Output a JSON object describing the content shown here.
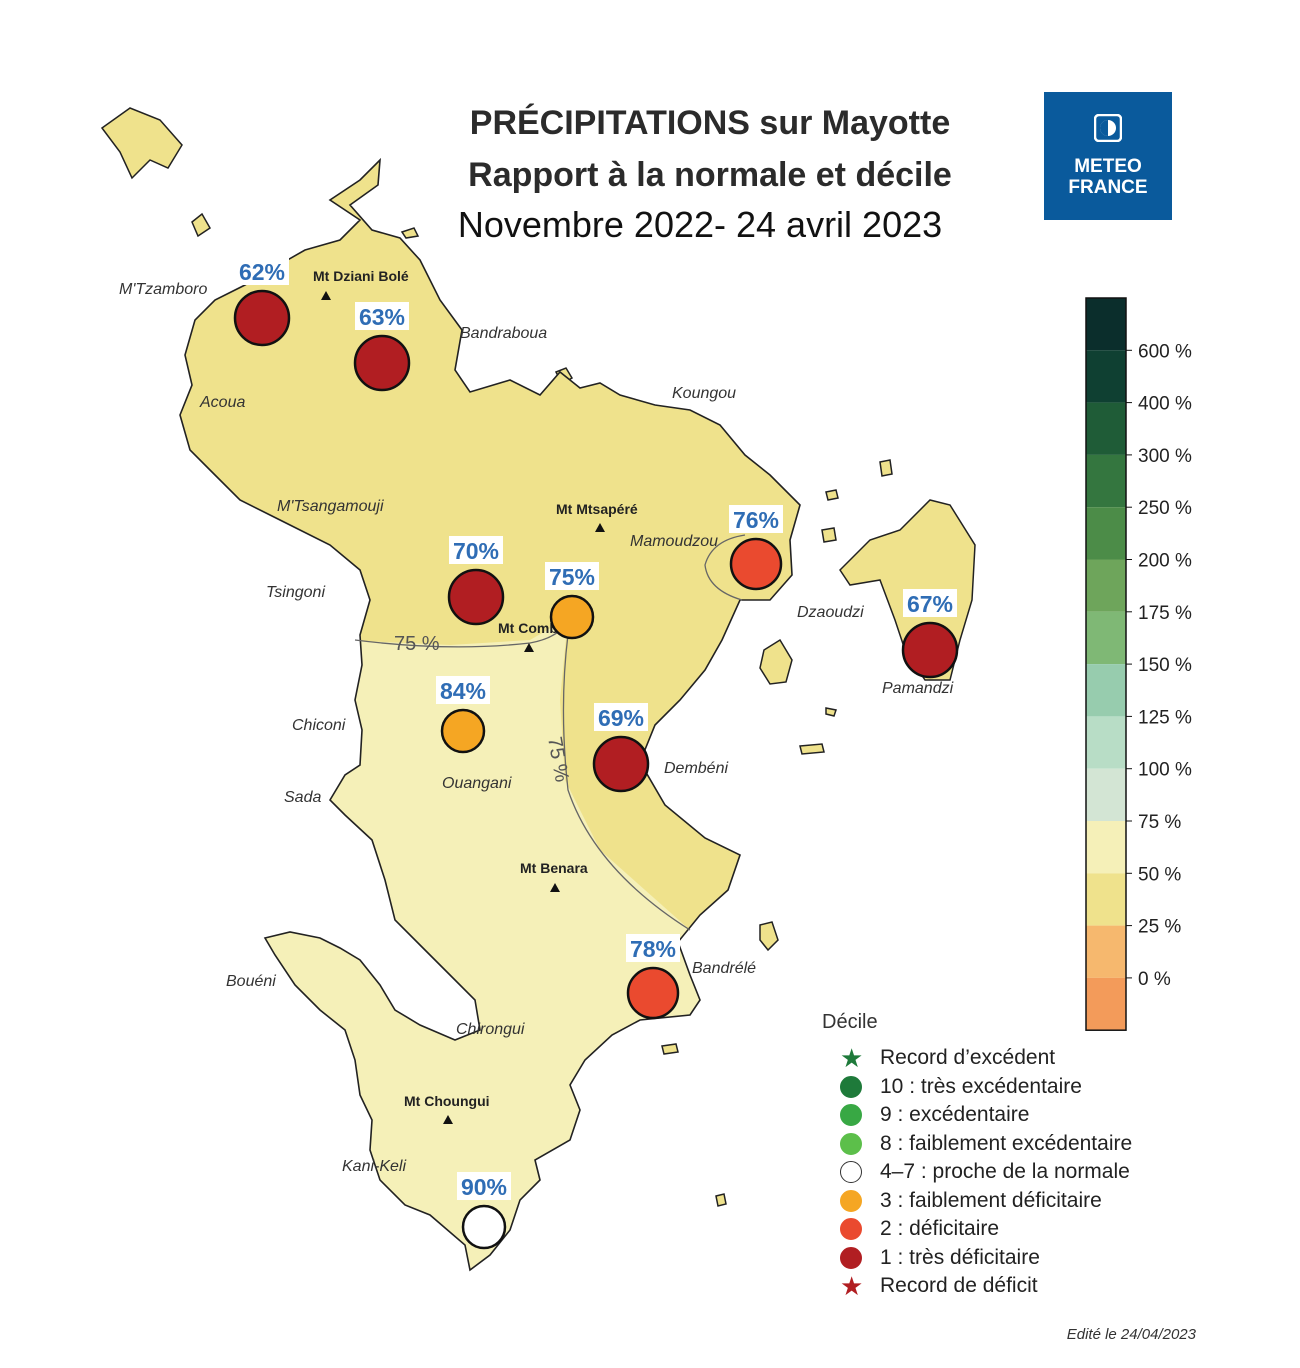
{
  "title": {
    "line1": "PRÉCIPITATIONS sur Mayotte",
    "line2": "Rapport à la normale et décile",
    "line3": "Novembre 2022- 24 avril 2023"
  },
  "logo": {
    "line1": "METEO",
    "line2": "FRANCE",
    "icon": "meteo-france-logo-icon",
    "color": "#0a5a9c"
  },
  "places": [
    "M'Tzamboro",
    "Bandraboua",
    "Acoua",
    "Koungou",
    "M'Tsangamouji",
    "Mamoudzou",
    "Tsingoni",
    "Dzaoudzi",
    "Pamandzi",
    "Chiconi",
    "Ouangani",
    "Dembéni",
    "Sada",
    "Bouéni",
    "Bandrélé",
    "Chirongui",
    "Kani-Keli"
  ],
  "peaks": [
    "Mt Dziani Bolé",
    "Mt Mtsapéré",
    "Mt Combani",
    "Mt Benara",
    "Mt Choungui"
  ],
  "isoline_label": "75 %",
  "stations": [
    {
      "label": "62%",
      "decile": 1
    },
    {
      "label": "63%",
      "decile": 1
    },
    {
      "label": "70%",
      "decile": 1
    },
    {
      "label": "75%",
      "decile": 3
    },
    {
      "label": "76%",
      "decile": 2
    },
    {
      "label": "67%",
      "decile": 1
    },
    {
      "label": "84%",
      "decile": 3
    },
    {
      "label": "69%",
      "decile": 1
    },
    {
      "label": "78%",
      "decile": 2
    },
    {
      "label": "90%",
      "decile": "4-7"
    }
  ],
  "colorbar": {
    "labels": [
      "600 %",
      "400 %",
      "300 %",
      "250 %",
      "200 %",
      "175 %",
      "150 %",
      "125 %",
      "100 %",
      "75 %",
      "50 %",
      "25 %",
      "0 %"
    ],
    "colors": [
      "#0b2e2c",
      "#0f4032",
      "#1f5c37",
      "#34763f",
      "#4c8c48",
      "#6ea55b",
      "#7fb875",
      "#97ccae",
      "#b8ddc6",
      "#d3e5d4",
      "#f5f0b8",
      "#efe28c",
      "#f6b86e",
      "#f39b5a"
    ]
  },
  "legend": {
    "title": "Décile",
    "items": [
      {
        "label": "Record d’excédent",
        "symbol": "star",
        "color": "#1e7a3a"
      },
      {
        "label": "10 : très excédentaire",
        "symbol": "dot",
        "color": "#1e7a3a"
      },
      {
        "label": "9 : excédentaire",
        "symbol": "dot",
        "color": "#38a844"
      },
      {
        "label": "8 : faiblement excédentaire",
        "symbol": "dot",
        "color": "#5cbf4a"
      },
      {
        "label": "4–7 : proche de la normale",
        "symbol": "dot",
        "color": "#ffffff"
      },
      {
        "label": "3 : faiblement déficitaire",
        "symbol": "dot",
        "color": "#f5a623"
      },
      {
        "label": "2 : déficitaire",
        "symbol": "dot",
        "color": "#ea4a2f"
      },
      {
        "label": "1 : très déficitaire",
        "symbol": "dot",
        "color": "#b11e22"
      },
      {
        "label": "Record de déficit",
        "symbol": "star",
        "color": "#b11e22"
      }
    ]
  },
  "edit_note": "Edité le 24/04/2023",
  "colors": {
    "zone_50_75": "#efe28c",
    "zone_75_100": "#f5f0b8",
    "decile_1": "#b11e22",
    "decile_2": "#ea4a2f",
    "decile_3": "#f5a623",
    "decile_normal": "#ffffff"
  }
}
